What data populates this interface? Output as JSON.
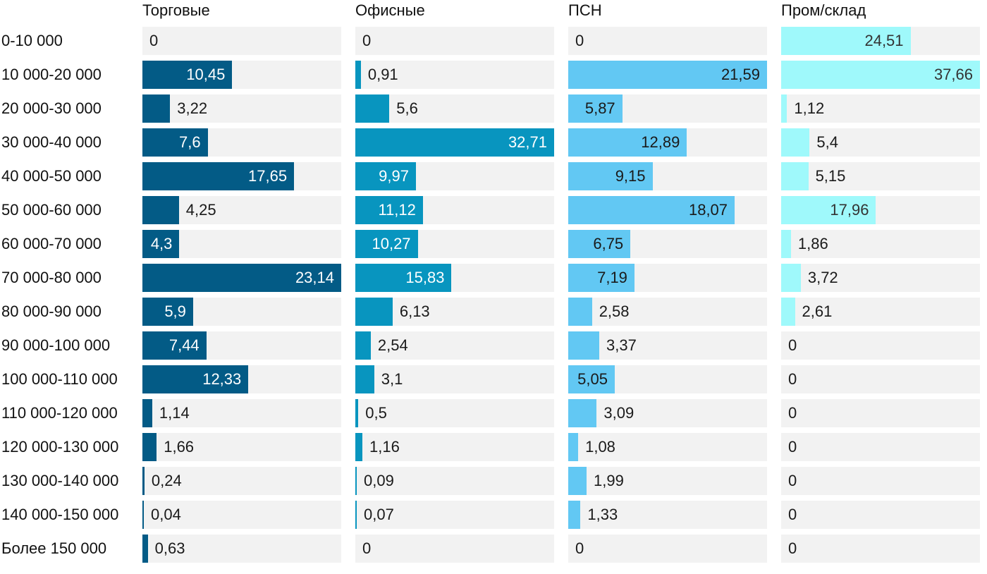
{
  "chart_data": {
    "type": "bar",
    "orientation": "horizontal",
    "layout": "small-multiples",
    "categories": [
      "0-10 000",
      "10 000-20 000",
      "20 000-30 000",
      "30 000-40 000",
      "40 000-50 000",
      "50 000-60 000",
      "60 000-70 000",
      "70 000-80 000",
      "80 000-90 000",
      "90 000-100 000",
      "100 000-110 000",
      "110 000-120 000",
      "120 000-130 000",
      "130 000-140 000",
      "140 000-150 000",
      "Более 150 000"
    ],
    "series": [
      {
        "name": "Торговые",
        "color": "#035b86",
        "xlim": [
          0,
          23.14
        ],
        "values": [
          0,
          10.45,
          3.22,
          7.6,
          17.65,
          4.25,
          4.3,
          23.14,
          5.9,
          7.44,
          12.33,
          1.14,
          1.66,
          0.24,
          0.04,
          0.63
        ],
        "labels": [
          "0",
          "10,45",
          "3,22",
          "7,6",
          "17,65",
          "4,25",
          "4,3",
          "23,14",
          "5,9",
          "7,44",
          "12,33",
          "1,14",
          "1,66",
          "0,24",
          "0,04",
          "0,63"
        ]
      },
      {
        "name": "Офисные",
        "color": "#0895bf",
        "xlim": [
          0,
          32.71
        ],
        "values": [
          0,
          0.91,
          5.6,
          32.71,
          9.97,
          11.12,
          10.27,
          15.83,
          6.13,
          2.54,
          3.1,
          0.5,
          1.16,
          0.09,
          0.07,
          0
        ],
        "labels": [
          "0",
          "0,91",
          "5,6",
          "32,71",
          "9,97",
          "11,12",
          "10,27",
          "15,83",
          "6,13",
          "2,54",
          "3,1",
          "0,5",
          "1,16",
          "0,09",
          "0,07",
          "0"
        ]
      },
      {
        "name": "ПСН",
        "color": "#62c8f3",
        "xlim": [
          0,
          21.59
        ],
        "values": [
          0,
          21.59,
          5.87,
          12.89,
          9.15,
          18.07,
          6.75,
          7.19,
          2.58,
          3.37,
          5.05,
          3.09,
          1.08,
          1.99,
          1.33,
          0
        ],
        "labels": [
          "0",
          "21,59",
          "5,87",
          "12,89",
          "9,15",
          "18,07",
          "6,75",
          "7,19",
          "2,58",
          "3,37",
          "5,05",
          "3,09",
          "1,08",
          "1,99",
          "1,33",
          "0"
        ]
      },
      {
        "name": "Пром/склад",
        "color": "#9ff9fb",
        "xlim": [
          0,
          37.66
        ],
        "values": [
          24.51,
          37.66,
          1.12,
          5.4,
          5.15,
          17.96,
          1.86,
          3.72,
          2.61,
          0,
          0,
          0,
          0,
          0,
          0,
          0
        ],
        "labels": [
          "24,51",
          "37,66",
          "1,12",
          "5,4",
          "5,15",
          "17,96",
          "1,86",
          "3,72",
          "2,61",
          "0",
          "0",
          "0",
          "0",
          "0",
          "0",
          "0"
        ]
      }
    ],
    "title": "",
    "xlabel": "",
    "ylabel": "",
    "grid": false,
    "legend": "none"
  }
}
